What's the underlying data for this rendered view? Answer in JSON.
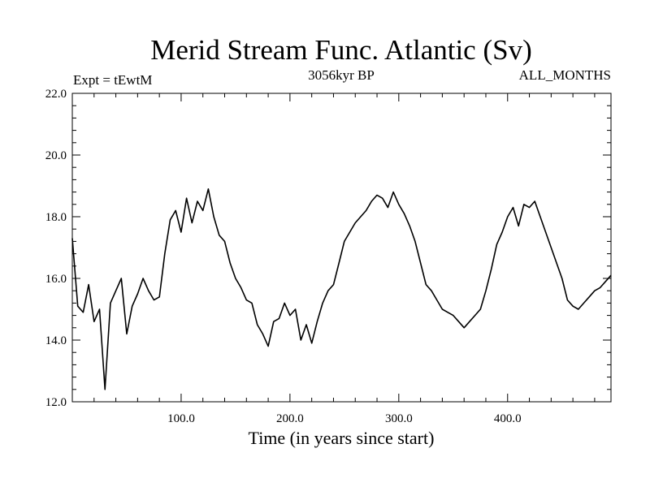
{
  "chart_data": {
    "type": "line",
    "title": "Merid Stream Func. Atlantic (Sv)",
    "subtitle": "3056kyr BP",
    "annotation_left": "Expt = tEwtM",
    "annotation_right": "ALL_MONTHS",
    "xlabel": "Time (in years since start)",
    "ylabel": "",
    "xlim": [
      0,
      495
    ],
    "ylim": [
      12.0,
      22.0
    ],
    "xticks": [
      100,
      200,
      300,
      400
    ],
    "xtick_labels": [
      "100.0",
      "200.0",
      "300.0",
      "400.0"
    ],
    "yticks": [
      12,
      14,
      16,
      18,
      20,
      22
    ],
    "ytick_labels": [
      "12.0",
      "14.0",
      "16.0",
      "18.0",
      "20.0",
      "22.0"
    ],
    "grid": false,
    "series": [
      {
        "name": "Merid Stream Func. Atlantic",
        "x_start": 0,
        "x_step": 5,
        "values": [
          17.3,
          15.1,
          14.9,
          15.8,
          14.6,
          15.0,
          12.4,
          15.2,
          15.6,
          16.0,
          14.2,
          15.1,
          15.5,
          16.0,
          15.6,
          15.3,
          15.4,
          16.8,
          17.9,
          18.2,
          17.5,
          18.6,
          17.8,
          18.5,
          18.2,
          18.9,
          18.0,
          17.4,
          17.2,
          16.5,
          16.0,
          15.7,
          15.3,
          15.2,
          14.5,
          14.2,
          13.8,
          14.6,
          14.7,
          15.2,
          14.8,
          15.0,
          14.0,
          14.5,
          13.9,
          14.6,
          15.2,
          15.6,
          15.8,
          16.5,
          17.2,
          17.5,
          17.8,
          18.0,
          18.2,
          18.5,
          18.7,
          18.6,
          18.3,
          18.8,
          18.4,
          18.1,
          17.7,
          17.2,
          16.5,
          15.8,
          15.6,
          15.3,
          15.0,
          14.9,
          14.8,
          14.6,
          14.4,
          14.6,
          14.8,
          15.0,
          15.6,
          16.3,
          17.1,
          17.5,
          18.0,
          18.3,
          17.7,
          18.4,
          18.3,
          18.5,
          18.0,
          17.5,
          17.0,
          16.5,
          16.0,
          15.3,
          15.1,
          15.0,
          15.2,
          15.4,
          15.6,
          15.7,
          15.9,
          16.1
        ]
      }
    ]
  }
}
